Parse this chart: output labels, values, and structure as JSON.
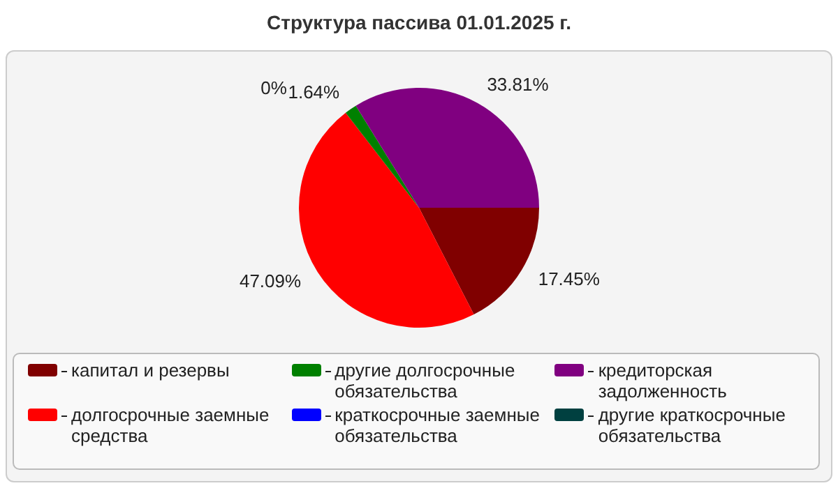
{
  "chart_data": {
    "type": "pie",
    "title": "Структура пассива 01.01.2025 г.",
    "categories": [
      "капитал и резервы",
      "долгосрочные заемные средства",
      "другие долгосрочные обязательства",
      "краткосрочные заемные обязательства",
      "кредиторская задолженность",
      "другие краткосрочные обязательства"
    ],
    "values": [
      17.45,
      47.09,
      1.64,
      0,
      33.81,
      0
    ],
    "colors": [
      "#800000",
      "#ff0000",
      "#008000",
      "#0000ff",
      "#800080",
      "#004040"
    ],
    "value_labels": [
      "17.45%",
      "47.09%",
      "1.64%",
      "0%",
      "33.81%",
      null
    ],
    "legend": "bottom"
  }
}
